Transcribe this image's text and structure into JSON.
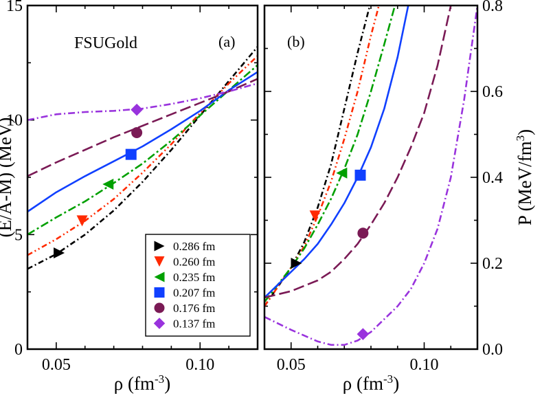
{
  "chart_data": [
    {
      "panel": "a",
      "type": "line",
      "panel_label": "(a)",
      "model_label": "FSUGold",
      "xlabel": "ρ (fm",
      "xlabel_sup": "-3",
      "xlabel_end": ")",
      "ylabel": "(E/A-M) (MeV)",
      "xlim": [
        0.04,
        0.12
      ],
      "ylim": [
        0,
        15
      ],
      "xticks": [
        0.05,
        0.1
      ],
      "xtick_labels": [
        "0.05",
        "0.10"
      ],
      "yticks": [
        0,
        5,
        10,
        15
      ],
      "ytick_labels": [
        "0",
        "5",
        "10",
        "15"
      ],
      "series": [
        {
          "name": "0.286 fm",
          "color": "#000000",
          "dash": "8,4,2,4",
          "x": [
            0.04,
            0.05,
            0.06,
            0.07,
            0.08,
            0.09,
            0.1,
            0.11,
            0.12
          ],
          "y": [
            3.5,
            4.15,
            5.0,
            6.05,
            7.3,
            8.7,
            10.2,
            11.7,
            13.2
          ],
          "marker": {
            "shape": "triangle-right",
            "x": 0.051,
            "y": 4.2
          }
        },
        {
          "name": "0.260 fm",
          "color": "#ff2a00",
          "dash": "8,4,2,4,2,4",
          "x": [
            0.04,
            0.05,
            0.06,
            0.07,
            0.08,
            0.09,
            0.1,
            0.11,
            0.12
          ],
          "y": [
            4.1,
            4.8,
            5.6,
            6.55,
            7.7,
            8.95,
            10.3,
            11.6,
            12.8
          ],
          "marker": {
            "shape": "triangle-down",
            "x": 0.059,
            "y": 5.6
          }
        },
        {
          "name": "0.235 fm",
          "color": "#00a000",
          "dash": "12,4,3,4",
          "x": [
            0.04,
            0.05,
            0.06,
            0.07,
            0.08,
            0.09,
            0.1,
            0.11,
            0.12
          ],
          "y": [
            5.0,
            5.75,
            6.45,
            7.25,
            8.1,
            9.1,
            10.2,
            11.3,
            12.4
          ],
          "marker": {
            "shape": "triangle-left",
            "x": 0.068,
            "y": 7.2
          }
        },
        {
          "name": "0.207 fm",
          "color": "#1040ff",
          "dash": "",
          "x": [
            0.04,
            0.05,
            0.06,
            0.07,
            0.08,
            0.09,
            0.1,
            0.11,
            0.12
          ],
          "y": [
            6.0,
            6.85,
            7.55,
            8.2,
            8.85,
            9.6,
            10.4,
            11.3,
            12.1
          ],
          "marker": {
            "shape": "square",
            "x": 0.076,
            "y": 8.5
          }
        },
        {
          "name": "0.176 fm",
          "color": "#7a1a55",
          "dash": "16,6",
          "x": [
            0.04,
            0.05,
            0.06,
            0.07,
            0.08,
            0.09,
            0.1,
            0.11,
            0.12
          ],
          "y": [
            7.55,
            8.15,
            8.7,
            9.25,
            9.75,
            10.25,
            10.75,
            11.25,
            11.8
          ],
          "marker": {
            "shape": "circle",
            "x": 0.078,
            "y": 9.45
          }
        },
        {
          "name": "0.137 fm",
          "color": "#9933dd",
          "dash": "10,4,2,4",
          "x": [
            0.04,
            0.05,
            0.06,
            0.07,
            0.08,
            0.09,
            0.1,
            0.11,
            0.12
          ],
          "y": [
            10.0,
            10.25,
            10.35,
            10.4,
            10.5,
            10.7,
            10.95,
            11.25,
            11.6
          ],
          "marker": {
            "shape": "diamond",
            "x": 0.078,
            "y": 10.45
          }
        }
      ]
    },
    {
      "panel": "b",
      "type": "line",
      "panel_label": "(b)",
      "xlabel": "ρ (fm",
      "xlabel_sup": "-3",
      "xlabel_end": ")",
      "ylabel": "P (MeV/fm",
      "ylabel_sup": "3",
      "ylabel_end": ")",
      "xlim": [
        0.04,
        0.12
      ],
      "ylim": [
        0,
        0.8
      ],
      "xticks": [
        0.05,
        0.1
      ],
      "xtick_labels": [
        "0.05",
        "0.10"
      ],
      "yticks": [
        0.0,
        0.2,
        0.4,
        0.6,
        0.8
      ],
      "ytick_labels": [
        "0.0",
        "0.2",
        "0.4",
        "0.6",
        "0.8"
      ],
      "series": [
        {
          "name": "0.286 fm",
          "color": "#000000",
          "dash": "8,4,2,4",
          "x": [
            0.04,
            0.045,
            0.05,
            0.055,
            0.06,
            0.065,
            0.07,
            0.075,
            0.08
          ],
          "y": [
            0.1,
            0.145,
            0.19,
            0.25,
            0.33,
            0.43,
            0.56,
            0.69,
            0.81
          ],
          "marker": {
            "shape": "triangle-right",
            "x": 0.052,
            "y": 0.2
          }
        },
        {
          "name": "0.260 fm",
          "color": "#ff2a00",
          "dash": "8,4,2,4,2,4",
          "x": [
            0.04,
            0.045,
            0.05,
            0.055,
            0.06,
            0.065,
            0.07,
            0.075,
            0.08,
            0.083
          ],
          "y": [
            0.1,
            0.145,
            0.19,
            0.24,
            0.31,
            0.39,
            0.49,
            0.6,
            0.73,
            0.8
          ],
          "marker": {
            "shape": "triangle-down",
            "x": 0.059,
            "y": 0.31
          }
        },
        {
          "name": "0.235 fm",
          "color": "#00a000",
          "dash": "12,4,3,4",
          "x": [
            0.04,
            0.045,
            0.05,
            0.055,
            0.06,
            0.065,
            0.07,
            0.075,
            0.08,
            0.085,
            0.089
          ],
          "y": [
            0.11,
            0.15,
            0.19,
            0.235,
            0.29,
            0.35,
            0.42,
            0.5,
            0.6,
            0.71,
            0.8
          ],
          "marker": {
            "shape": "triangle-left",
            "x": 0.069,
            "y": 0.41
          }
        },
        {
          "name": "0.207 fm",
          "color": "#1040ff",
          "dash": "",
          "x": [
            0.04,
            0.045,
            0.05,
            0.055,
            0.06,
            0.065,
            0.07,
            0.075,
            0.08,
            0.085,
            0.09,
            0.094
          ],
          "y": [
            0.12,
            0.15,
            0.18,
            0.21,
            0.245,
            0.29,
            0.34,
            0.4,
            0.47,
            0.56,
            0.68,
            0.8
          ],
          "marker": {
            "shape": "square",
            "x": 0.076,
            "y": 0.405
          }
        },
        {
          "name": "0.176 fm",
          "color": "#7a1a55",
          "dash": "16,6",
          "x": [
            0.04,
            0.05,
            0.06,
            0.065,
            0.07,
            0.075,
            0.08,
            0.085,
            0.09,
            0.095,
            0.1,
            0.105,
            0.11
          ],
          "y": [
            0.12,
            0.135,
            0.16,
            0.18,
            0.21,
            0.245,
            0.29,
            0.34,
            0.4,
            0.47,
            0.55,
            0.66,
            0.8
          ],
          "marker": {
            "shape": "circle",
            "x": 0.077,
            "y": 0.27
          }
        },
        {
          "name": "0.137 fm",
          "color": "#9933dd",
          "dash": "10,4,2,4",
          "x": [
            0.04,
            0.05,
            0.06,
            0.065,
            0.07,
            0.075,
            0.08,
            0.085,
            0.09,
            0.095,
            0.1,
            0.105,
            0.11,
            0.115,
            0.12
          ],
          "y": [
            0.075,
            0.045,
            0.018,
            0.01,
            0.01,
            0.02,
            0.04,
            0.07,
            0.1,
            0.14,
            0.2,
            0.28,
            0.4,
            0.58,
            0.8
          ],
          "marker": {
            "shape": "diamond",
            "x": 0.077,
            "y": 0.035
          }
        }
      ]
    }
  ]
}
